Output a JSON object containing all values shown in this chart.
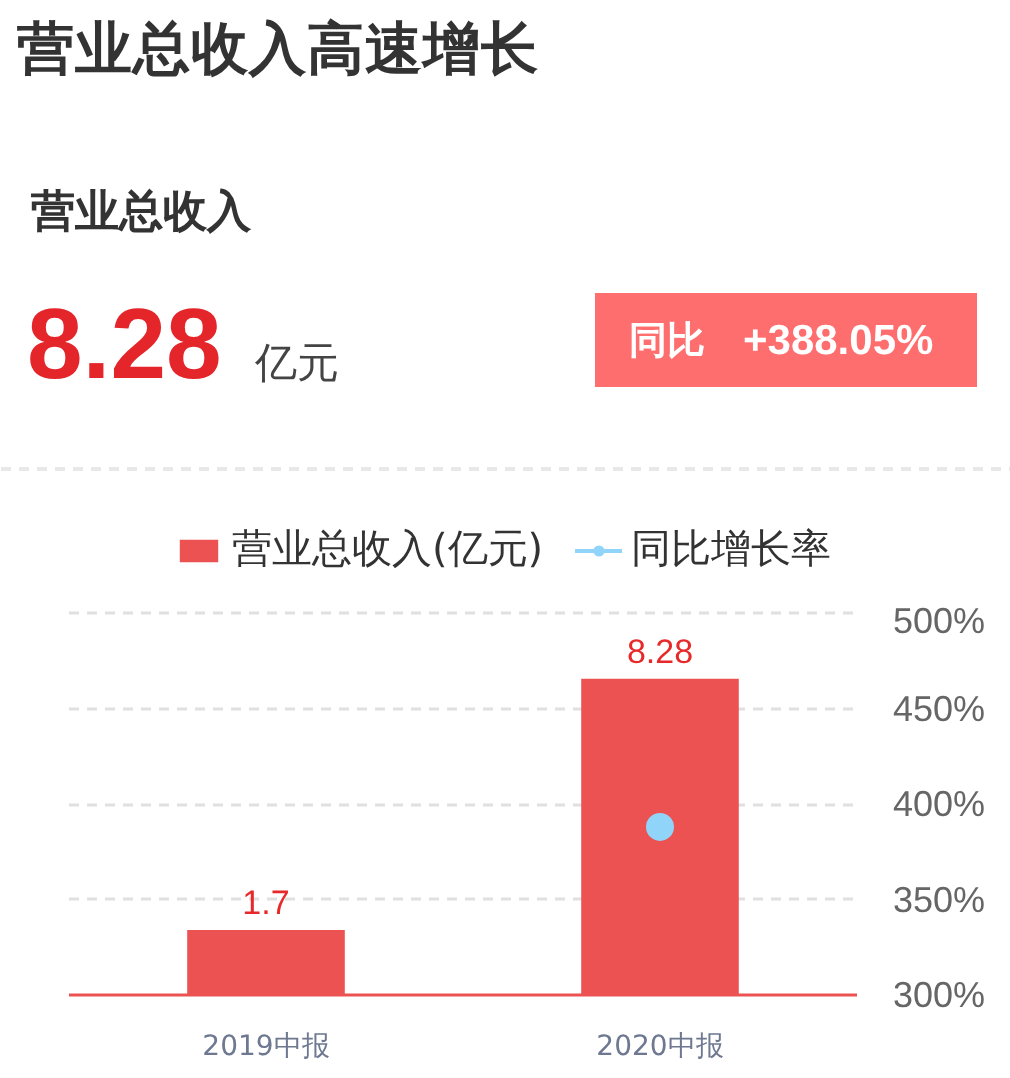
{
  "chart_data": {
    "type": "bar",
    "title": "营业总收入高速增长",
    "annotations": [
      "营业总收入",
      "8.28",
      "亿元",
      "同比",
      "+388.05%"
    ],
    "categories": [
      "2019中报",
      "2020中报"
    ],
    "series": [
      {
        "name": "营业总收入(亿元)",
        "color": "#ec5252",
        "values": [
          1.7,
          8.28
        ],
        "value_labels": [
          "1.7",
          "8.28"
        ]
      },
      {
        "name": "同比增长率",
        "type": "line",
        "color": "#90d4fa",
        "values": [
          null,
          388
        ],
        "axis": "y2",
        "marker": "circle"
      }
    ],
    "y2lim": [
      300,
      500
    ],
    "y2ticks": [
      {
        "value": 300,
        "label": "300%"
      },
      {
        "value": 350,
        "label": "350%"
      },
      {
        "value": 400,
        "label": "400%"
      },
      {
        "value": 450,
        "label": "450%"
      },
      {
        "value": 500,
        "label": "500%"
      }
    ],
    "grid": "y",
    "legend": "top"
  }
}
